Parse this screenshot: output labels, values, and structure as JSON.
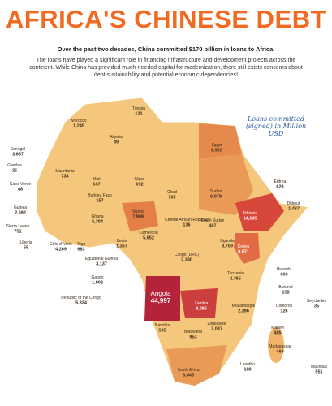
{
  "header": {
    "title": "AFRICA'S CHINESE DEBT",
    "subtitle": "Over the past two decades, China committed $170 billion in loans to Africa.",
    "body": "The loans have played a significant role in financing infrastructure and development projects across the continent. While China has provided much-needed capital for modernization, there still exists concerns about debt sustainability and potential economic dependencies!"
  },
  "legend_note": "Loans committed (signed) in Million USD",
  "countries": [
    {
      "name": "Tunisia",
      "amount": "131"
    },
    {
      "name": "Morocco",
      "amount": "1,245"
    },
    {
      "name": "Algeria",
      "amount": "49"
    },
    {
      "name": "Egypt",
      "amount": "8,920"
    },
    {
      "name": "Senegal",
      "amount": "3,637"
    },
    {
      "name": "Gambia",
      "amount": "25"
    },
    {
      "name": "Mauritania",
      "amount": "734"
    },
    {
      "name": "Mali",
      "amount": "667"
    },
    {
      "name": "Niger",
      "amount": "692"
    },
    {
      "name": "Chad",
      "amount": "765"
    },
    {
      "name": "Sudan",
      "amount": "6,079"
    },
    {
      "name": "Eritrea",
      "amount": "628"
    },
    {
      "name": "Djibouti",
      "amount": "1,487"
    },
    {
      "name": "Cape Verde",
      "amount": "48"
    },
    {
      "name": "Burkina Faso",
      "amount": "157"
    },
    {
      "name": "Guinea",
      "amount": "2,692"
    },
    {
      "name": "Sierra Leone",
      "amount": "751"
    },
    {
      "name": "Liberia",
      "amount": "55"
    },
    {
      "name": "Côte d'Ivoire",
      "amount": "4,269"
    },
    {
      "name": "Ghana",
      "amount": "5,304"
    },
    {
      "name": "Togo",
      "amount": "683"
    },
    {
      "name": "Benin",
      "amount": "1,367"
    },
    {
      "name": "Nigeria",
      "amount": "7,998"
    },
    {
      "name": "Cameroon",
      "amount": "5,652"
    },
    {
      "name": "Central African Republic",
      "amount": "136"
    },
    {
      "name": "South Sudan",
      "amount": "407"
    },
    {
      "name": "Ethiopia",
      "amount": "14,145"
    },
    {
      "name": "Equatorial Guinea",
      "amount": "3,137"
    },
    {
      "name": "Gabon",
      "amount": "1,902"
    },
    {
      "name": "Republic of the Congo",
      "amount": "5,334"
    },
    {
      "name": "Congo (DRC)",
      "amount": "2,390"
    },
    {
      "name": "Uganda",
      "amount": "3,709"
    },
    {
      "name": "Kenya",
      "amount": "9,671"
    },
    {
      "name": "Rwanda",
      "amount": "660"
    },
    {
      "name": "Burundi",
      "amount": "158"
    },
    {
      "name": "Tanzania",
      "amount": "2,365"
    },
    {
      "name": "Comoros",
      "amount": "126"
    },
    {
      "name": "Seychelles",
      "amount": "35"
    },
    {
      "name": "Angola",
      "amount": "44,997"
    },
    {
      "name": "Zambia",
      "amount": "9,085"
    },
    {
      "name": "Mozambique",
      "amount": "2,396"
    },
    {
      "name": "Malawi",
      "amount": "485"
    },
    {
      "name": "Madagascar",
      "amount": "469"
    },
    {
      "name": "Mauritius",
      "amount": "551"
    },
    {
      "name": "Namibia",
      "amount": "505"
    },
    {
      "name": "Botswana",
      "amount": "953"
    },
    {
      "name": "Zimbabwe",
      "amount": "3,037"
    },
    {
      "name": "South Africa",
      "amount": "6,045"
    },
    {
      "name": "Lesotho",
      "amount": "188"
    }
  ]
}
